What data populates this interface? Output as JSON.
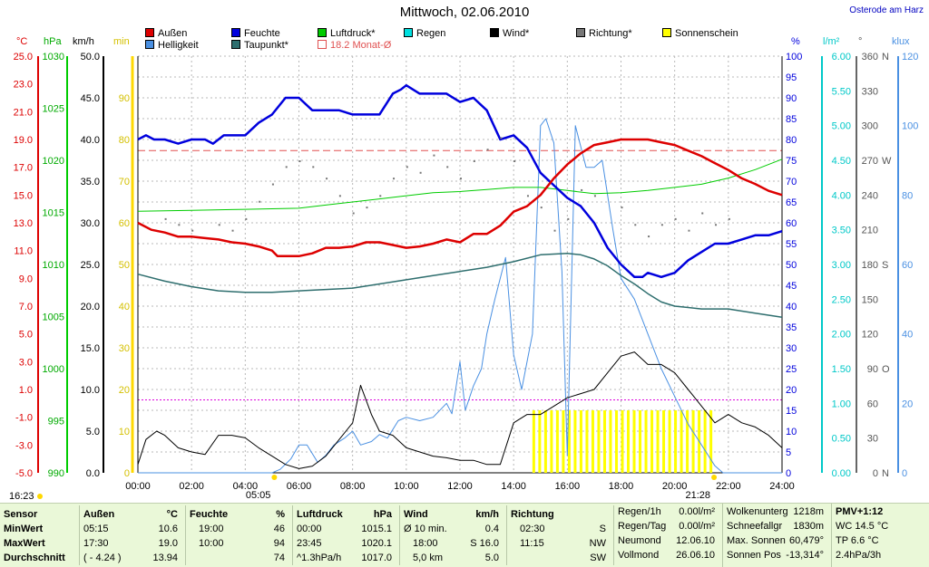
{
  "header": {
    "title": "Mittwoch, 02.06.2010",
    "location": "Osterode am Harz"
  },
  "legend": [
    {
      "label": "Außen",
      "color": "#dd0000"
    },
    {
      "label": "Helligkeit",
      "color": "#4a90e2"
    },
    {
      "label": "Feuchte",
      "color": "#0000dd"
    },
    {
      "label": "Taupunkt*",
      "color": "#2e6e6e"
    },
    {
      "label": "Luftdruck*",
      "color": "#00cc00"
    },
    {
      "label": "18.2 Monat-Ø",
      "color": "#e05050"
    },
    {
      "label": "Regen",
      "color": "#00e0e0"
    },
    {
      "label": "Wind*",
      "color": "#000000"
    },
    {
      "label": "Richtung*",
      "color": "#777777"
    },
    {
      "label": "Sonnenschein",
      "color": "#ffff00"
    }
  ],
  "units": {
    "temp": "°C",
    "pressure": "hPa",
    "wind": "km/h",
    "sun": "min",
    "humidity": "%",
    "rain": "l/m²",
    "direction": "°",
    "light": "klux"
  },
  "axes": {
    "temp": [
      "25.0",
      "23.0",
      "21.0",
      "19.0",
      "17.0",
      "15.0",
      "13.0",
      "11.0",
      "9.0",
      "7.0",
      "5.0",
      "3.0",
      "1.0",
      "-1.0",
      "-3.0",
      "-5.0"
    ],
    "pressure": [
      "1030",
      "1025",
      "1020",
      "1015",
      "1010",
      "1005",
      "1000",
      "995",
      "990"
    ],
    "wind": [
      "50.0",
      "45.0",
      "40.0",
      "35.0",
      "30.0",
      "25.0",
      "20.0",
      "15.0",
      "10.0",
      "5.0",
      "0.0"
    ],
    "sun": [
      "90",
      "80",
      "70",
      "60",
      "50",
      "40",
      "30",
      "20",
      "10",
      "0"
    ],
    "humidity": [
      "100",
      "95",
      "90",
      "85",
      "80",
      "75",
      "70",
      "65",
      "60",
      "55",
      "50",
      "45",
      "40",
      "35",
      "30",
      "25",
      "20",
      "15",
      "10",
      "5",
      "0"
    ],
    "rain": [
      "6.00",
      "5.50",
      "5.00",
      "4.50",
      "4.00",
      "3.50",
      "3.00",
      "2.50",
      "2.00",
      "1.50",
      "1.00",
      "0.50",
      "0.00"
    ],
    "direction_values": [
      "360",
      "330",
      "300",
      "270",
      "240",
      "210",
      "180",
      "150",
      "120",
      "90",
      "60",
      "30",
      "0"
    ],
    "direction_letters": [
      "N",
      "",
      "",
      "W",
      "",
      "",
      "S",
      "",
      "",
      "O",
      "",
      "",
      "N"
    ],
    "light": [
      "120",
      "100",
      "80",
      "60",
      "40",
      "20",
      "0"
    ],
    "time": [
      "00:00",
      "02:00",
      "04:00",
      "06:00",
      "08:00",
      "10:00",
      "12:00",
      "14:00",
      "16:00",
      "18:00",
      "20:00",
      "22:00",
      "24:00"
    ]
  },
  "chart_data": {
    "type": "line",
    "title": "Mittwoch, 02.06.2010",
    "x_unit": "hours",
    "xlim": [
      0,
      24
    ],
    "axis_ranges": {
      "temp_C": [
        -5,
        25
      ],
      "wind_kmh": [
        0,
        50
      ],
      "humidity_pct": [
        0,
        100
      ],
      "pressure_hPa": [
        990,
        1030
      ],
      "rain_lm2": [
        0,
        6
      ],
      "light_klux": [
        0,
        120
      ]
    },
    "reference_lines": {
      "monthly_avg_temp_C": 18.2,
      "humidity_pct": 17.5
    },
    "series": [
      {
        "name": "Außen",
        "axis": "temp_C",
        "color": "#dd0000",
        "width": 2.5,
        "x": [
          0,
          0.5,
          1,
          1.5,
          2,
          2.5,
          3,
          3.5,
          4,
          4.5,
          5,
          5.2,
          5.5,
          6,
          6.5,
          7,
          7.5,
          8,
          8.5,
          9,
          9.5,
          10,
          10.5,
          11,
          11.5,
          12,
          12.5,
          13,
          13.5,
          14,
          14.5,
          15,
          15.5,
          16,
          16.5,
          17,
          17.5,
          18,
          18.5,
          19,
          19.5,
          20,
          20.5,
          21,
          21.5,
          22,
          22.5,
          23,
          23.5,
          24
        ],
        "values": [
          13.0,
          12.5,
          12.3,
          12.0,
          12.0,
          11.9,
          11.8,
          11.6,
          11.5,
          11.3,
          11.0,
          10.6,
          10.6,
          10.6,
          10.8,
          11.2,
          11.2,
          11.3,
          11.6,
          11.6,
          11.4,
          11.2,
          11.3,
          11.5,
          11.8,
          11.6,
          12.2,
          12.2,
          12.8,
          13.8,
          14.2,
          15.0,
          16.2,
          17.2,
          18.0,
          18.6,
          18.8,
          19.0,
          19.0,
          19.0,
          18.8,
          18.6,
          18.2,
          17.8,
          17.3,
          16.8,
          16.2,
          15.8,
          15.3,
          15.0
        ]
      },
      {
        "name": "Feuchte",
        "axis": "humidity_pct",
        "color": "#0000dd",
        "width": 2.5,
        "x": [
          0,
          0.3,
          0.6,
          1,
          1.5,
          2,
          2.5,
          2.8,
          3.2,
          3.6,
          4,
          4.5,
          5,
          5.5,
          6,
          6.5,
          7,
          7.5,
          8,
          8.5,
          9,
          9.5,
          9.8,
          10,
          10.5,
          11,
          11.5,
          12,
          12.5,
          13,
          13.5,
          14,
          14.5,
          15,
          15.5,
          16,
          16.5,
          17,
          17.5,
          18,
          18.5,
          18.8,
          19,
          19.5,
          20,
          20.5,
          21,
          21.5,
          22,
          22.5,
          23,
          23.5,
          24
        ],
        "values": [
          80,
          81,
          80,
          80,
          79,
          80,
          80,
          79,
          81,
          81,
          81,
          84,
          86,
          90,
          90,
          87,
          87,
          87,
          86,
          86,
          86,
          91,
          92,
          93,
          91,
          91,
          91,
          89,
          90,
          87,
          80,
          81,
          78,
          72,
          69,
          66,
          64,
          60,
          54,
          50,
          47,
          47,
          48,
          47,
          48,
          51,
          53,
          55,
          55,
          56,
          57,
          57,
          58
        ]
      },
      {
        "name": "Taupunkt*",
        "axis": "temp_C",
        "color": "#2e6e6e",
        "width": 1.5,
        "x": [
          0,
          1,
          2,
          3,
          4,
          5,
          6,
          7,
          8,
          9,
          10,
          11,
          12,
          13,
          14,
          15,
          16,
          16.5,
          17,
          17.5,
          18,
          18.5,
          19,
          19.5,
          20,
          20.5,
          21,
          22,
          23,
          24
        ],
        "values": [
          9.3,
          8.8,
          8.4,
          8.1,
          8.0,
          8.0,
          8.1,
          8.2,
          8.3,
          8.6,
          8.9,
          9.2,
          9.5,
          9.8,
          10.2,
          10.7,
          10.8,
          10.7,
          10.4,
          9.9,
          9.2,
          8.6,
          7.9,
          7.3,
          7.0,
          6.9,
          6.8,
          6.8,
          6.5,
          6.2
        ]
      },
      {
        "name": "Luftdruck*",
        "axis": "pressure_hPa",
        "color": "#00cc00",
        "width": 1,
        "x": [
          0,
          2,
          4,
          6,
          7,
          8,
          9,
          10,
          11,
          12,
          13,
          14,
          15,
          16,
          17,
          18,
          19,
          20,
          21,
          22,
          23,
          24
        ],
        "values": [
          1015.1,
          1015.2,
          1015.3,
          1015.4,
          1015.7,
          1016.0,
          1016.3,
          1016.6,
          1016.9,
          1017.0,
          1017.2,
          1017.4,
          1017.4,
          1017.1,
          1016.8,
          1016.9,
          1017.1,
          1017.4,
          1017.7,
          1018.3,
          1019.1,
          1020.1
        ]
      },
      {
        "name": "Wind*",
        "axis": "wind_kmh",
        "color": "#000000",
        "width": 1,
        "x": [
          0,
          0.3,
          0.7,
          1,
          1.5,
          2,
          2.5,
          3,
          3.5,
          4,
          4.5,
          5,
          5.5,
          6,
          6.5,
          7,
          7.5,
          8,
          8.3,
          8.7,
          9,
          9.5,
          10,
          10.5,
          11,
          11.5,
          12,
          12.5,
          13,
          13.5,
          14,
          14.5,
          15,
          15.5,
          16,
          16.5,
          17,
          17.5,
          18,
          18.5,
          19,
          19.5,
          20,
          20.5,
          21,
          21.5,
          22,
          22.5,
          23,
          23.5,
          24
        ],
        "values": [
          1.0,
          4.0,
          5.0,
          4.5,
          3.0,
          2.5,
          2.2,
          4.5,
          4.5,
          4.2,
          3.0,
          2.0,
          1.0,
          0.5,
          0.8,
          2.0,
          4.0,
          6.0,
          10.5,
          7.0,
          5.0,
          4.5,
          3.0,
          2.5,
          2.0,
          1.8,
          1.5,
          1.5,
          1.0,
          1.0,
          6.0,
          7.0,
          7.0,
          8.0,
          9.0,
          9.5,
          10.0,
          12.0,
          14.0,
          14.5,
          13.0,
          13.0,
          12.0,
          10.0,
          8.0,
          6.0,
          7.0,
          6.0,
          5.5,
          4.5,
          3.0
        ]
      },
      {
        "name": "Helligkeit",
        "axis": "light_klux",
        "color": "#4a90e2",
        "width": 1,
        "x": [
          0,
          5.0,
          5.3,
          5.7,
          6.0,
          6.3,
          6.7,
          7.0,
          7.3,
          7.7,
          8.0,
          8.3,
          8.7,
          9.0,
          9.3,
          9.7,
          10.0,
          10.5,
          11.0,
          11.5,
          11.7,
          12.0,
          12.2,
          12.5,
          12.8,
          13.0,
          13.3,
          13.7,
          14.0,
          14.3,
          14.7,
          15.0,
          15.2,
          15.5,
          15.8,
          16.0,
          16.3,
          16.7,
          17.0,
          17.3,
          17.7,
          18.0,
          18.5,
          19.0,
          19.5,
          20.0,
          20.5,
          21.0,
          21.5,
          21.8,
          22,
          24
        ],
        "values": [
          0,
          0,
          1,
          4,
          8,
          8,
          3,
          5,
          8,
          10,
          12,
          8,
          9,
          11,
          10,
          15,
          16,
          15,
          16,
          20,
          17,
          32,
          18,
          25,
          30,
          40,
          50,
          62,
          34,
          24,
          40,
          100,
          102,
          95,
          58,
          5,
          100,
          88,
          88,
          90,
          70,
          56,
          50,
          40,
          30,
          22,
          14,
          8,
          2,
          0,
          0,
          0
        ]
      }
    ],
    "sunshine_bars": {
      "color": "#ffff00",
      "from_h": 14.7,
      "to_h": 21.4,
      "step_h": 0.22,
      "height_min": 15
    },
    "pressure_dots": {
      "note": "dotted direction series (Richtung*)",
      "x": [
        1.0,
        1.5,
        2.0,
        3.0,
        3.5,
        4.0,
        4.5,
        5.0,
        5.5,
        6.0,
        6.5,
        7.0,
        7.5,
        8.0,
        8.5,
        9.0,
        9.5,
        10.0,
        10.5,
        11.0,
        11.5,
        12.0,
        12.5,
        13.0,
        13.5,
        14.0,
        14.5,
        15.0,
        15.5,
        16.0,
        16.5,
        17.0,
        18.0,
        18.5,
        19.0,
        19.5,
        20.0,
        20.5,
        21.0,
        21.5,
        22.0
      ],
      "values": [
        220,
        215,
        210,
        215,
        210,
        220,
        235,
        250,
        265,
        270,
        265,
        255,
        240,
        225,
        230,
        240,
        255,
        265,
        260,
        275,
        265,
        255,
        270,
        280,
        290,
        270,
        240,
        230,
        210,
        220,
        245,
        240,
        230,
        215,
        205,
        215,
        220,
        210,
        225,
        215,
        220
      ]
    },
    "markers": {
      "sunrise": "05:05",
      "sunset": "21:28",
      "left_time": "16:23"
    }
  },
  "footer": {
    "sensor": {
      "title": "Sensor",
      "rows": [
        "MinWert",
        "MaxWert",
        "Durchschnitt"
      ]
    },
    "aussen": {
      "title": "Außen",
      "unit": "°C",
      "rows": [
        [
          "05:15",
          "10.6"
        ],
        [
          "17:30",
          "19.0"
        ],
        [
          "( - 4.24 )",
          "13.94"
        ]
      ]
    },
    "feuchte": {
      "title": "Feuchte",
      "unit": "%",
      "rows": [
        [
          "19:00",
          "46"
        ],
        [
          "10:00",
          "94"
        ],
        [
          "",
          "74"
        ]
      ]
    },
    "luftdruck": {
      "title": "Luftdruck",
      "unit": "hPa",
      "rows": [
        [
          "00:00",
          "1015.1"
        ],
        [
          "23:45",
          "1020.1"
        ],
        [
          "^1.3hPa/h",
          "1017.0"
        ]
      ]
    },
    "wind": {
      "title": "Wind",
      "unit": "km/h",
      "rows": [
        [
          "Ø 10 min.",
          "0.4"
        ],
        [
          "18:00",
          "S 16.0"
        ],
        [
          "5,0 km",
          "5.0"
        ]
      ]
    },
    "richtung": {
      "title": "Richtung",
      "rows": [
        [
          "02:30",
          "S"
        ],
        [
          "11:15",
          "NW"
        ],
        [
          "",
          "SW"
        ]
      ]
    },
    "regen": {
      "rows": [
        [
          "Regen/1h",
          "0.00l/m²"
        ],
        [
          "Regen/Tag",
          "0.00l/m²"
        ],
        [
          "Neumond",
          "12.06.10"
        ],
        [
          "Vollmond",
          "26.06.10"
        ]
      ]
    },
    "wolken": {
      "rows": [
        [
          "Wolkenunterg",
          "1218m"
        ],
        [
          "Schneefallgr",
          "1830m"
        ],
        [
          "Max. Sonnen",
          "60,479°"
        ],
        [
          "Sonnen Pos",
          "-13,314°"
        ]
      ]
    },
    "pmv": {
      "rows": [
        "PMV+1:12",
        "WC 14.5 °C",
        "TP 6.6 °C",
        "2.4hPa/3h"
      ]
    }
  }
}
